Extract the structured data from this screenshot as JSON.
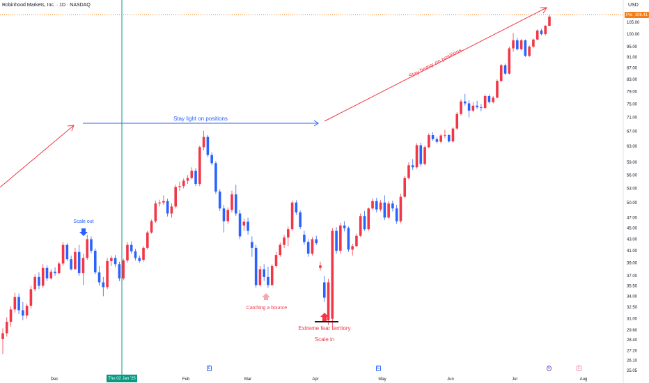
{
  "header": {
    "title": "Robinhood Markets, Inc. · 1D · NASDAQ",
    "currency": "USD"
  },
  "price_badge": {
    "label": "Pre",
    "value": "108.41",
    "color": "#f57c17"
  },
  "crosshair_date": "Thu 02 Jan '25",
  "event_icons": {
    "earnings": "E",
    "dividend": "E"
  },
  "colors": {
    "up": "#f23645",
    "down": "#2962ff",
    "crosshair": "#089981",
    "annotation_red": "#f23645",
    "annotation_blue": "#2962ff"
  },
  "chart_data": {
    "type": "candlestick",
    "x_labels": [
      "Dec",
      "Thu 02 Jan '25",
      "Feb",
      "Mar",
      "Apr",
      "May",
      "Jun",
      "Jul",
      "Aug"
    ],
    "y_ticks": [
      25.05,
      26.1,
      27.2,
      28.4,
      29.6,
      31.0,
      32.5,
      34.0,
      35.5,
      37.0,
      39.0,
      41.0,
      43.0,
      45.0,
      47.0,
      50.0,
      53.0,
      56.0,
      59.0,
      63.0,
      67.0,
      71.0,
      75.0,
      79.0,
      83.0,
      87.0,
      91.0,
      95.0,
      100.0,
      105.0
    ],
    "y_scale": "log",
    "ylim": [
      25.05,
      110.0
    ],
    "last_price": 108.41,
    "annotations": [
      {
        "text": "Scale out",
        "color": "#2962ff"
      },
      {
        "text": "Stay light on positions",
        "color": "#2962ff"
      },
      {
        "text": "Stay heavy on positions",
        "color": "#f23645"
      },
      {
        "text": "Catching a bounce",
        "color": "#f23645"
      },
      {
        "text": "Extreme fear territory",
        "color": "#f23645"
      },
      {
        "text": "Scale in",
        "color": "#f23645"
      }
    ],
    "candles": [
      {
        "o": 28.5,
        "h": 29.8,
        "l": 26.8,
        "c": 29.2
      },
      {
        "o": 29.2,
        "h": 31.2,
        "l": 28.8,
        "c": 30.6
      },
      {
        "o": 30.6,
        "h": 32.6,
        "l": 30.0,
        "c": 32.2
      },
      {
        "o": 32.2,
        "h": 34.5,
        "l": 31.8,
        "c": 33.9
      },
      {
        "o": 33.9,
        "h": 34.4,
        "l": 31.6,
        "c": 32.1
      },
      {
        "o": 32.1,
        "h": 33.2,
        "l": 30.8,
        "c": 31.4
      },
      {
        "o": 31.4,
        "h": 33.0,
        "l": 31.0,
        "c": 32.7
      },
      {
        "o": 32.7,
        "h": 35.5,
        "l": 32.3,
        "c": 35.0
      },
      {
        "o": 35.0,
        "h": 37.2,
        "l": 34.7,
        "c": 36.8
      },
      {
        "o": 36.8,
        "h": 37.5,
        "l": 35.0,
        "c": 35.5
      },
      {
        "o": 35.5,
        "h": 38.8,
        "l": 35.2,
        "c": 38.2
      },
      {
        "o": 38.2,
        "h": 38.6,
        "l": 36.2,
        "c": 36.6
      },
      {
        "o": 36.6,
        "h": 38.0,
        "l": 36.4,
        "c": 37.6
      },
      {
        "o": 37.6,
        "h": 38.3,
        "l": 37.0,
        "c": 37.4
      },
      {
        "o": 37.4,
        "h": 39.2,
        "l": 37.2,
        "c": 38.9
      },
      {
        "o": 38.9,
        "h": 42.5,
        "l": 38.5,
        "c": 42.0
      },
      {
        "o": 42.0,
        "h": 42.3,
        "l": 39.3,
        "c": 39.6
      },
      {
        "o": 39.6,
        "h": 40.2,
        "l": 37.8,
        "c": 38.0
      },
      {
        "o": 38.0,
        "h": 41.5,
        "l": 37.9,
        "c": 40.8
      },
      {
        "o": 40.8,
        "h": 42.0,
        "l": 37.0,
        "c": 37.4
      },
      {
        "o": 37.4,
        "h": 40.5,
        "l": 35.6,
        "c": 39.8
      },
      {
        "o": 39.8,
        "h": 43.8,
        "l": 39.5,
        "c": 43.0
      },
      {
        "o": 43.0,
        "h": 43.5,
        "l": 40.6,
        "c": 41.0
      },
      {
        "o": 41.0,
        "h": 41.4,
        "l": 37.2,
        "c": 37.5
      },
      {
        "o": 37.5,
        "h": 38.5,
        "l": 35.5,
        "c": 36.0
      },
      {
        "o": 36.0,
        "h": 36.8,
        "l": 34.0,
        "c": 35.3
      },
      {
        "o": 35.3,
        "h": 39.8,
        "l": 35.0,
        "c": 39.3
      },
      {
        "o": 39.3,
        "h": 40.2,
        "l": 38.5,
        "c": 39.8
      },
      {
        "o": 39.8,
        "h": 40.3,
        "l": 38.3,
        "c": 38.8
      },
      {
        "o": 38.8,
        "h": 39.2,
        "l": 36.2,
        "c": 36.6
      },
      {
        "o": 36.6,
        "h": 39.7,
        "l": 36.3,
        "c": 39.4
      },
      {
        "o": 39.4,
        "h": 42.5,
        "l": 39.0,
        "c": 42.0
      },
      {
        "o": 42.0,
        "h": 42.6,
        "l": 40.5,
        "c": 40.9
      },
      {
        "o": 40.9,
        "h": 41.3,
        "l": 39.4,
        "c": 39.8
      },
      {
        "o": 39.8,
        "h": 40.2,
        "l": 39.0,
        "c": 39.3
      },
      {
        "o": 39.5,
        "h": 41.8,
        "l": 39.2,
        "c": 41.5
      },
      {
        "o": 41.5,
        "h": 44.5,
        "l": 41.2,
        "c": 44.2
      },
      {
        "o": 44.2,
        "h": 46.6,
        "l": 44.0,
        "c": 46.3
      },
      {
        "o": 46.3,
        "h": 50.4,
        "l": 46.0,
        "c": 49.8
      },
      {
        "o": 49.8,
        "h": 50.6,
        "l": 49.2,
        "c": 50.0
      },
      {
        "o": 50.0,
        "h": 51.5,
        "l": 49.5,
        "c": 50.3
      },
      {
        "o": 50.3,
        "h": 50.8,
        "l": 47.2,
        "c": 47.8
      },
      {
        "o": 47.8,
        "h": 49.8,
        "l": 47.0,
        "c": 49.2
      },
      {
        "o": 49.2,
        "h": 53.8,
        "l": 48.8,
        "c": 53.3
      },
      {
        "o": 53.3,
        "h": 54.5,
        "l": 52.5,
        "c": 53.5
      },
      {
        "o": 53.5,
        "h": 55.2,
        "l": 53.0,
        "c": 54.7
      },
      {
        "o": 54.7,
        "h": 56.0,
        "l": 54.0,
        "c": 55.3
      },
      {
        "o": 55.3,
        "h": 57.8,
        "l": 55.0,
        "c": 57.0
      },
      {
        "o": 57.0,
        "h": 57.6,
        "l": 53.5,
        "c": 54.0
      },
      {
        "o": 54.0,
        "h": 63.2,
        "l": 53.5,
        "c": 62.8
      },
      {
        "o": 62.8,
        "h": 67.2,
        "l": 62.0,
        "c": 65.5
      },
      {
        "o": 65.5,
        "h": 66.0,
        "l": 60.3,
        "c": 60.8
      },
      {
        "o": 60.8,
        "h": 61.5,
        "l": 58.3,
        "c": 58.8
      },
      {
        "o": 58.8,
        "h": 59.3,
        "l": 51.8,
        "c": 52.3
      },
      {
        "o": 52.3,
        "h": 52.8,
        "l": 48.3,
        "c": 48.8
      },
      {
        "o": 48.8,
        "h": 49.5,
        "l": 44.2,
        "c": 46.3
      },
      {
        "o": 46.3,
        "h": 49.0,
        "l": 45.8,
        "c": 48.5
      },
      {
        "o": 48.5,
        "h": 52.5,
        "l": 48.0,
        "c": 51.7
      },
      {
        "o": 51.7,
        "h": 53.8,
        "l": 47.3,
        "c": 47.8
      },
      {
        "o": 47.8,
        "h": 48.5,
        "l": 43.0,
        "c": 43.5
      },
      {
        "o": 45.5,
        "h": 46.8,
        "l": 44.5,
        "c": 46.2
      },
      {
        "o": 46.2,
        "h": 47.0,
        "l": 43.8,
        "c": 44.5
      },
      {
        "o": 42.5,
        "h": 43.5,
        "l": 40.0,
        "c": 41.5
      },
      {
        "o": 41.5,
        "h": 42.0,
        "l": 35.2,
        "c": 35.6
      },
      {
        "o": 35.6,
        "h": 38.5,
        "l": 35.4,
        "c": 38.0
      },
      {
        "o": 38.0,
        "h": 38.8,
        "l": 36.2,
        "c": 36.8
      },
      {
        "o": 36.8,
        "h": 38.4,
        "l": 35.2,
        "c": 35.6
      },
      {
        "o": 35.6,
        "h": 38.8,
        "l": 35.5,
        "c": 38.5
      },
      {
        "o": 38.5,
        "h": 40.8,
        "l": 38.2,
        "c": 40.3
      },
      {
        "o": 40.3,
        "h": 42.4,
        "l": 40.0,
        "c": 42.0
      },
      {
        "o": 42.0,
        "h": 43.8,
        "l": 41.5,
        "c": 43.3
      },
      {
        "o": 43.3,
        "h": 45.3,
        "l": 41.8,
        "c": 44.8
      },
      {
        "o": 44.8,
        "h": 50.4,
        "l": 44.5,
        "c": 50.0
      },
      {
        "o": 50.0,
        "h": 50.5,
        "l": 47.5,
        "c": 48.0
      },
      {
        "o": 48.0,
        "h": 48.4,
        "l": 44.8,
        "c": 45.2
      },
      {
        "o": 43.8,
        "h": 44.5,
        "l": 42.0,
        "c": 42.5
      },
      {
        "o": 42.5,
        "h": 43.0,
        "l": 40.0,
        "c": 40.5
      },
      {
        "o": 40.5,
        "h": 43.4,
        "l": 40.2,
        "c": 43.0
      },
      {
        "o": 43.0,
        "h": 43.6,
        "l": 42.0,
        "c": 42.3
      },
      {
        "o": 38.2,
        "h": 39.2,
        "l": 37.8,
        "c": 38.6
      },
      {
        "o": 36.0,
        "h": 37.0,
        "l": 33.2,
        "c": 33.8
      },
      {
        "o": 30.8,
        "h": 36.5,
        "l": 30.2,
        "c": 36.0
      },
      {
        "o": 31.0,
        "h": 45.0,
        "l": 30.0,
        "c": 44.5
      },
      {
        "o": 44.5,
        "h": 45.2,
        "l": 40.5,
        "c": 41.0
      },
      {
        "o": 41.0,
        "h": 46.0,
        "l": 40.5,
        "c": 45.5
      },
      {
        "o": 45.5,
        "h": 46.3,
        "l": 44.4,
        "c": 45.0
      },
      {
        "o": 45.0,
        "h": 45.3,
        "l": 40.8,
        "c": 41.2
      },
      {
        "o": 41.2,
        "h": 42.2,
        "l": 40.2,
        "c": 41.8
      },
      {
        "o": 41.8,
        "h": 44.0,
        "l": 41.6,
        "c": 43.6
      },
      {
        "o": 43.6,
        "h": 47.8,
        "l": 43.4,
        "c": 47.3
      },
      {
        "o": 47.3,
        "h": 48.3,
        "l": 44.5,
        "c": 44.8
      },
      {
        "o": 44.8,
        "h": 49.0,
        "l": 44.5,
        "c": 48.8
      },
      {
        "o": 48.8,
        "h": 50.8,
        "l": 48.5,
        "c": 50.3
      },
      {
        "o": 50.3,
        "h": 51.0,
        "l": 48.0,
        "c": 48.6
      },
      {
        "o": 48.6,
        "h": 50.5,
        "l": 48.2,
        "c": 50.0
      },
      {
        "o": 50.0,
        "h": 51.5,
        "l": 46.5,
        "c": 47.0
      },
      {
        "o": 47.0,
        "h": 50.3,
        "l": 46.8,
        "c": 49.8
      },
      {
        "o": 49.8,
        "h": 50.4,
        "l": 48.2,
        "c": 48.8
      },
      {
        "o": 48.8,
        "h": 49.5,
        "l": 45.8,
        "c": 46.3
      },
      {
        "o": 46.3,
        "h": 51.8,
        "l": 46.0,
        "c": 51.2
      },
      {
        "o": 51.2,
        "h": 55.8,
        "l": 51.0,
        "c": 55.3
      },
      {
        "o": 55.3,
        "h": 59.0,
        "l": 55.0,
        "c": 58.3
      },
      {
        "o": 58.3,
        "h": 59.8,
        "l": 57.2,
        "c": 57.8
      },
      {
        "o": 57.8,
        "h": 63.8,
        "l": 57.5,
        "c": 63.3
      },
      {
        "o": 63.3,
        "h": 64.0,
        "l": 58.0,
        "c": 58.6
      },
      {
        "o": 58.6,
        "h": 63.2,
        "l": 58.3,
        "c": 62.8
      },
      {
        "o": 62.8,
        "h": 66.5,
        "l": 62.5,
        "c": 66.0
      },
      {
        "o": 66.0,
        "h": 66.8,
        "l": 64.5,
        "c": 64.9
      },
      {
        "o": 64.9,
        "h": 65.5,
        "l": 63.8,
        "c": 64.2
      },
      {
        "o": 64.2,
        "h": 66.3,
        "l": 63.8,
        "c": 65.9
      },
      {
        "o": 65.9,
        "h": 67.5,
        "l": 65.2,
        "c": 66.0
      },
      {
        "o": 66.0,
        "h": 66.3,
        "l": 64.0,
        "c": 64.3
      },
      {
        "o": 64.3,
        "h": 68.2,
        "l": 64.0,
        "c": 67.8
      },
      {
        "o": 67.8,
        "h": 72.5,
        "l": 67.5,
        "c": 72.0
      },
      {
        "o": 72.0,
        "h": 76.5,
        "l": 71.5,
        "c": 75.8
      },
      {
        "o": 75.8,
        "h": 78.2,
        "l": 74.5,
        "c": 75.2
      },
      {
        "o": 75.2,
        "h": 76.2,
        "l": 71.0,
        "c": 73.0
      },
      {
        "o": 73.0,
        "h": 75.6,
        "l": 72.5,
        "c": 74.5
      },
      {
        "o": 74.5,
        "h": 76.0,
        "l": 73.5,
        "c": 74.0
      },
      {
        "o": 74.0,
        "h": 75.0,
        "l": 72.8,
        "c": 73.8
      },
      {
        "o": 73.8,
        "h": 78.0,
        "l": 73.5,
        "c": 77.5
      },
      {
        "o": 77.5,
        "h": 78.0,
        "l": 75.2,
        "c": 75.6
      },
      {
        "o": 75.6,
        "h": 77.5,
        "l": 75.2,
        "c": 77.0
      },
      {
        "o": 77.0,
        "h": 83.0,
        "l": 76.8,
        "c": 82.5
      },
      {
        "o": 82.5,
        "h": 88.5,
        "l": 82.0,
        "c": 88.0
      },
      {
        "o": 88.0,
        "h": 88.6,
        "l": 84.5,
        "c": 85.0
      },
      {
        "o": 85.0,
        "h": 95.0,
        "l": 84.7,
        "c": 94.3
      },
      {
        "o": 94.3,
        "h": 100.5,
        "l": 93.0,
        "c": 97.5
      },
      {
        "o": 97.5,
        "h": 98.5,
        "l": 93.5,
        "c": 94.0
      },
      {
        "o": 94.0,
        "h": 98.0,
        "l": 93.5,
        "c": 97.5
      },
      {
        "o": 97.5,
        "h": 97.8,
        "l": 91.0,
        "c": 91.5
      },
      {
        "o": 91.5,
        "h": 95.5,
        "l": 91.0,
        "c": 95.0
      },
      {
        "o": 95.0,
        "h": 98.2,
        "l": 94.5,
        "c": 97.8
      },
      {
        "o": 97.8,
        "h": 102.0,
        "l": 97.5,
        "c": 101.5
      },
      {
        "o": 101.5,
        "h": 102.2,
        "l": 99.5,
        "c": 100.0
      },
      {
        "o": 100.0,
        "h": 103.8,
        "l": 99.5,
        "c": 103.5
      },
      {
        "o": 103.5,
        "h": 108.2,
        "l": 103.2,
        "c": 107.5
      }
    ]
  }
}
